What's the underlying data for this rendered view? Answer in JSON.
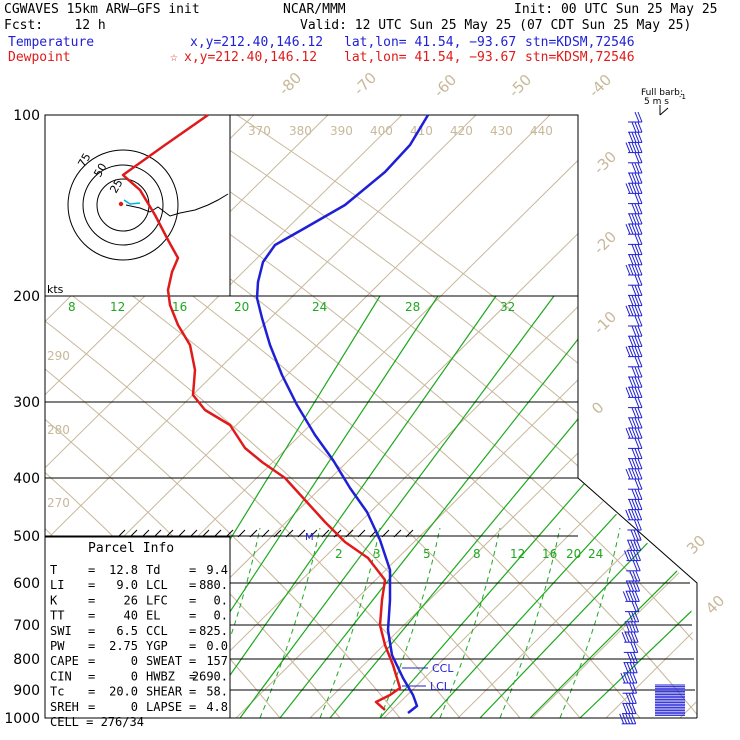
{
  "header": {
    "model": "CGWAVES 15km ARW–GFS init",
    "org": "NCAR/MMM",
    "init": "Init: 00 UTC Sun 25 May 25",
    "fcst": "Fcst:    12 h",
    "valid": "Valid: 12 UTC Sun 25 May 25 (07 CDT Sun 25 May 25)",
    "temp_label": "Temperature",
    "temp_xy": "x,y=212.40,146.12",
    "temp_latlon": "lat,lon= 41.54, −93.67",
    "temp_stn": "stn=KDSM,72546",
    "dew_label": "Dewpoint",
    "dew_xy": "x,y=212.40,146.12",
    "dew_latlon": "lat,lon= 41.54, −93.67",
    "dew_stn": "stn=KDSM,72546",
    "dew_marker": "☆",
    "barb_title_1": "Full barb:",
    "barb_title_2": "5 m s",
    "barb_title_sup": "-1"
  },
  "parcel_info": {
    "title": "Parcel Info",
    "rows": [
      {
        "l1": "T",
        "v1": "12.8",
        "l2": "Td",
        "v2": "9.4"
      },
      {
        "l1": "LI",
        "v1": "9.0",
        "l2": "LCL",
        "v2": "880."
      },
      {
        "l1": "K",
        "v1": "26",
        "l2": "LFC",
        "v2": "0."
      },
      {
        "l1": "TT",
        "v1": "40",
        "l2": "EL",
        "v2": "0."
      },
      {
        "l1": "SWI",
        "v1": "6.5",
        "l2": "CCL",
        "v2": "825."
      },
      {
        "l1": "PW",
        "v1": "2.75",
        "l2": "YGP",
        "v2": "0.0"
      },
      {
        "l1": "CAPE",
        "v1": "0",
        "l2": "SWEAT",
        "v2": "157"
      },
      {
        "l1": "CIN",
        "v1": "0",
        "l2": "HWBZ",
        "v2": "2690."
      },
      {
        "l1": "Tc",
        "v1": "20.0",
        "l2": "SHEAR",
        "v2": "58."
      },
      {
        "l1": "SREH",
        "v1": "0",
        "l2": "LAPSE",
        "v2": "4.8"
      }
    ],
    "cell_label": "CELL",
    "cell_value": "276/34"
  },
  "hodograph": {
    "ring_labels": [
      "75",
      "50",
      "25"
    ],
    "unit": "kts"
  },
  "colors": {
    "temperature": "#1f1fd6",
    "dewpoint": "#e01a1a",
    "mixing_ratio": "#1ea81e",
    "isotherm": "#c8b89a",
    "grid": "#000000"
  },
  "chart_data": {
    "type": "line",
    "pressure_levels": [
      100,
      200,
      300,
      400,
      500,
      600,
      700,
      800,
      900,
      1000
    ],
    "pressure_tick_labels": [
      "100",
      "200",
      "300",
      "400",
      "500",
      "600",
      "700",
      "800",
      "900",
      "1000"
    ],
    "isotherm_labels": [
      "-80",
      "-70",
      "-60",
      "-50",
      "-40",
      "-30",
      "-20",
      "-10",
      "0",
      "30",
      "40"
    ],
    "theta_labels_top": [
      "370",
      "380",
      "390",
      "400",
      "410",
      "420",
      "430",
      "440"
    ],
    "theta_labels_left": [
      "290",
      "280",
      "270"
    ],
    "mixing_ratio_labels_top": [
      "8",
      "12",
      "16",
      "20",
      "24",
      "28",
      "32"
    ],
    "mixing_ratio_labels_mid": [
      "2",
      "3",
      "5",
      "8",
      "12",
      "16",
      "20",
      "24"
    ],
    "level_markers": [
      "CCL",
      "LCL",
      "M"
    ],
    "series": [
      {
        "name": "Temperature",
        "points": [
          [
            428,
            115
          ],
          [
            410,
            145
          ],
          [
            385,
            172
          ],
          [
            345,
            205
          ],
          [
            305,
            228
          ],
          [
            275,
            245
          ],
          [
            263,
            262
          ],
          [
            258,
            282
          ],
          [
            257,
            298
          ],
          [
            262,
            318
          ],
          [
            270,
            345
          ],
          [
            282,
            375
          ],
          [
            297,
            405
          ],
          [
            315,
            435
          ],
          [
            333,
            460
          ],
          [
            350,
            488
          ],
          [
            367,
            512
          ],
          [
            380,
            540
          ],
          [
            390,
            570
          ],
          [
            390,
            600
          ],
          [
            388,
            630
          ],
          [
            392,
            655
          ],
          [
            403,
            678
          ],
          [
            413,
            695
          ],
          [
            417,
            706
          ],
          [
            408,
            713
          ]
        ]
      },
      {
        "name": "Dewpoint",
        "points": [
          [
            208,
            115
          ],
          [
            165,
            145
          ],
          [
            123,
            175
          ],
          [
            140,
            190
          ],
          [
            155,
            215
          ],
          [
            168,
            240
          ],
          [
            178,
            258
          ],
          [
            172,
            272
          ],
          [
            168,
            290
          ],
          [
            170,
            305
          ],
          [
            178,
            325
          ],
          [
            190,
            345
          ],
          [
            195,
            370
          ],
          [
            193,
            395
          ],
          [
            205,
            410
          ],
          [
            230,
            425
          ],
          [
            245,
            448
          ],
          [
            262,
            462
          ],
          [
            285,
            478
          ],
          [
            305,
            500
          ],
          [
            325,
            522
          ],
          [
            345,
            542
          ],
          [
            368,
            558
          ],
          [
            385,
            580
          ],
          [
            382,
            600
          ],
          [
            380,
            625
          ],
          [
            385,
            645
          ],
          [
            393,
            665
          ],
          [
            400,
            688
          ],
          [
            390,
            695
          ],
          [
            376,
            702
          ],
          [
            385,
            710
          ]
        ]
      }
    ]
  }
}
